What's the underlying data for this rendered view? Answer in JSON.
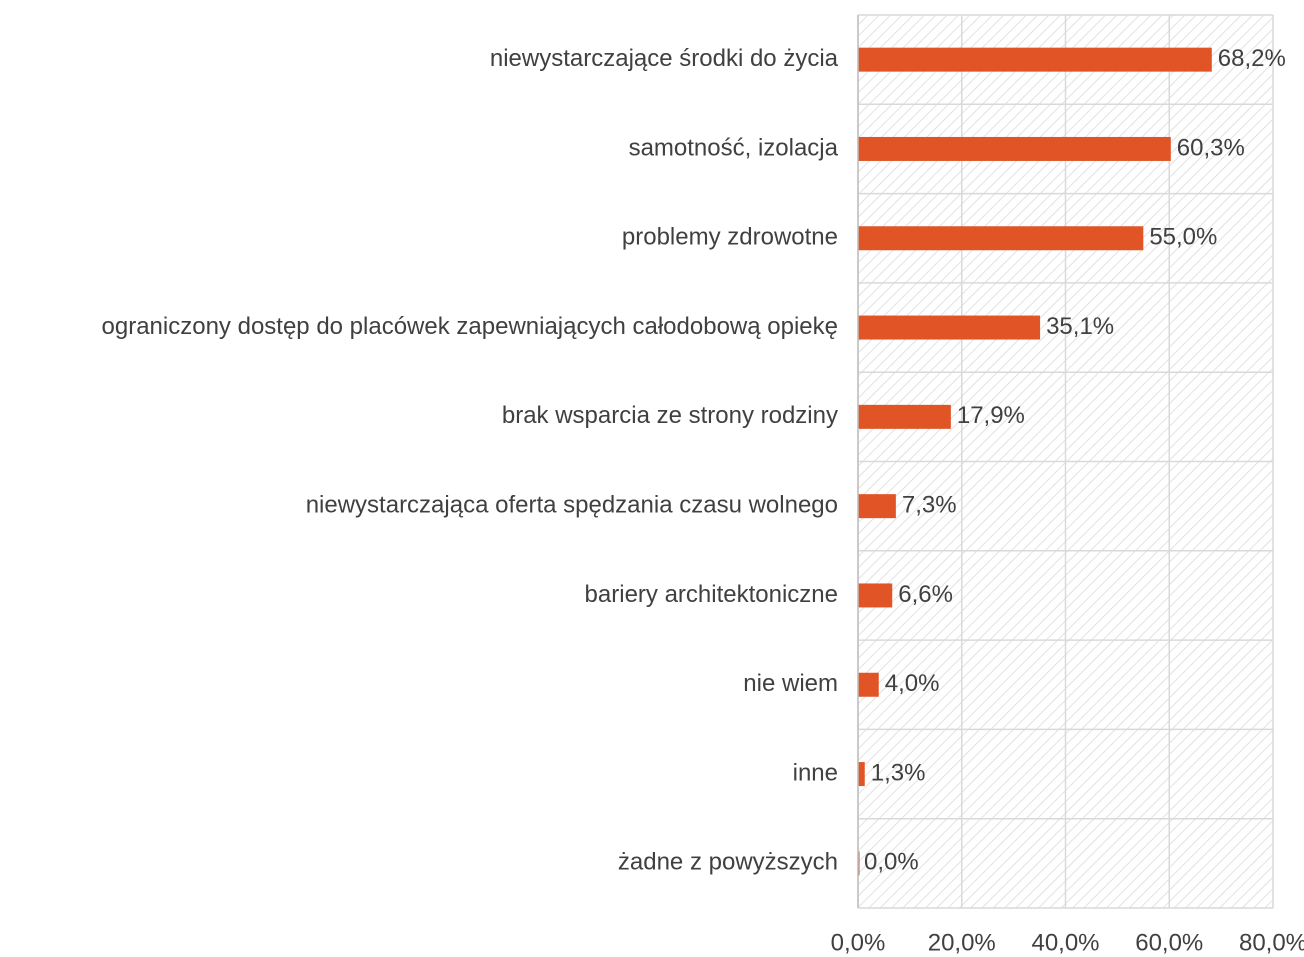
{
  "chart_data": {
    "type": "bar",
    "orientation": "horizontal",
    "categories": [
      "niewystarczające środki do życia",
      "samotność, izolacja",
      "problemy zdrowotne",
      "ograniczony dostęp do placówek zapewniających całodobową opiekę",
      "brak wsparcia ze strony rodziny",
      "niewystarczająca oferta spędzania czasu wolnego",
      "bariery architektoniczne",
      "nie wiem",
      "inne",
      "żadne z powyższych"
    ],
    "values": [
      68.2,
      60.3,
      55.0,
      35.1,
      17.9,
      7.3,
      6.6,
      4.0,
      1.3,
      0.0
    ],
    "value_labels": [
      "68,2%",
      "60,3%",
      "55,0%",
      "35,1%",
      "17,9%",
      "7,3%",
      "6,6%",
      "4,0%",
      "1,3%",
      "0,0%"
    ],
    "color": "#e05426",
    "xlim": [
      0,
      80
    ],
    "xticks": [
      {
        "value": 0,
        "label": "0,0%"
      },
      {
        "value": 20,
        "label": "20,0%"
      },
      {
        "value": 40,
        "label": "40,0%"
      },
      {
        "value": 60,
        "label": "60,0%"
      },
      {
        "value": 80,
        "label": "80,0%"
      }
    ],
    "grid": true
  }
}
